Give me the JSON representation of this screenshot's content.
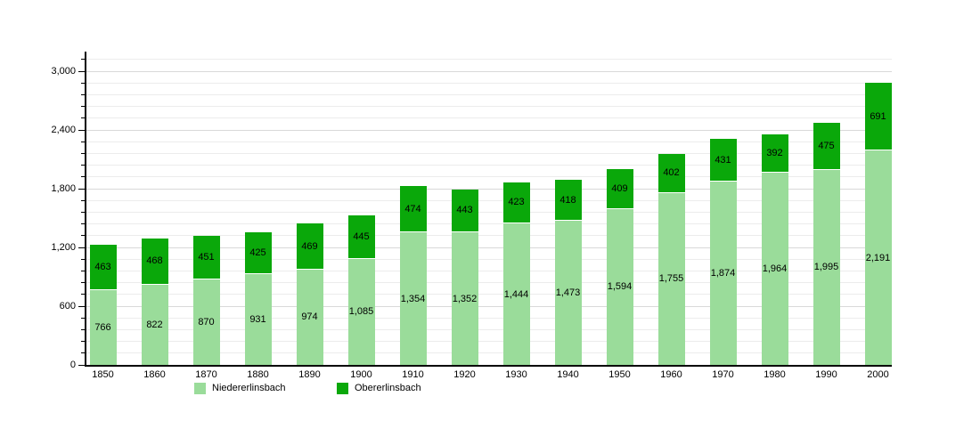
{
  "chart_data": {
    "type": "bar",
    "stacked": true,
    "title": "",
    "xlabel": "",
    "ylabel": "",
    "categories": [
      "1850",
      "1860",
      "1870",
      "1880",
      "1890",
      "1900",
      "1910",
      "1920",
      "1930",
      "1940",
      "1950",
      "1960",
      "1970",
      "1980",
      "1990",
      "2000"
    ],
    "series": [
      {
        "name": "Niedererlinsbach",
        "color": "#9adc9a",
        "values": [
          766,
          822,
          870,
          931,
          974,
          1085,
          1354,
          1352,
          1444,
          1473,
          1594,
          1755,
          1874,
          1964,
          1995,
          2191
        ]
      },
      {
        "name": "Obererlinsbach",
        "color": "#0aa80a",
        "values": [
          463,
          468,
          451,
          425,
          469,
          445,
          474,
          443,
          423,
          418,
          409,
          402,
          431,
          392,
          475,
          691
        ]
      }
    ],
    "ylim": [
      0,
      3200
    ],
    "yticks": [
      0,
      600,
      1200,
      1800,
      2400,
      3000
    ],
    "minor_tick_step": 120,
    "grid": true,
    "value_labels": true,
    "legend_position": "bottom"
  },
  "legend": {
    "items": [
      {
        "label": "Niedererlinsbach",
        "color": "#9adc9a"
      },
      {
        "label": "Obererlinsbach",
        "color": "#0aa80a"
      }
    ]
  },
  "axis_colors": {
    "axis": "#000000",
    "major_grid": "#d9d9d9",
    "minor_grid": "#ececec"
  }
}
